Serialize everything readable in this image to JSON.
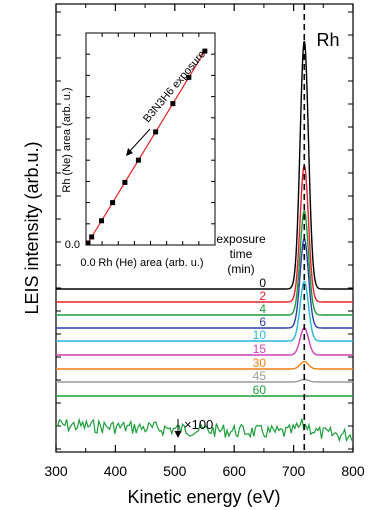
{
  "chart_data": [
    {
      "type": "line",
      "xlabel": "Kinetic energy (eV)",
      "ylabel": "LEIS intensity (arb.u.)",
      "xlim": [
        300,
        800
      ],
      "x_ticks": [
        "300",
        "400",
        "500",
        "600",
        "700",
        "800"
      ],
      "peak_label": "Rh",
      "peak_position_ev": 718,
      "legend_title": [
        "exposure",
        "time",
        "(min)"
      ],
      "magnification_label": "×100",
      "magnified_series": "60",
      "series": [
        {
          "name": "0",
          "color": "#000000",
          "peak_height": 1.0
        },
        {
          "name": "2",
          "color": "#e8202a",
          "peak_height": 0.55
        },
        {
          "name": "4",
          "color": "#1b9e3a",
          "peak_height": 0.42
        },
        {
          "name": "6",
          "color": "#2b3ea8",
          "peak_height": 0.36
        },
        {
          "name": "10",
          "color": "#22b8d8",
          "peak_height": 0.24
        },
        {
          "name": "15",
          "color": "#cc3fb4",
          "peak_height": 0.11
        },
        {
          "name": "30",
          "color": "#f07f12",
          "peak_height": 0.03
        },
        {
          "name": "45",
          "color": "#9a9a9a",
          "peak_height": 0.01
        },
        {
          "name": "60",
          "color": "#1b9e3a",
          "peak_height": 0.0
        }
      ]
    },
    {
      "type": "scatter",
      "xlabel": "Rh (He) area (arb. u.)",
      "ylabel": "Rh (Ne) area (arb. u.)",
      "x_ticks": [
        "0.0"
      ],
      "y_ticks": [
        "0.0"
      ],
      "annotation": "B3N3H6 exposure",
      "x": [
        0.0,
        0.03,
        0.11,
        0.2,
        0.3,
        0.41,
        0.55,
        0.69,
        0.82,
        0.95
      ],
      "y": [
        0.0,
        0.03,
        0.11,
        0.2,
        0.3,
        0.41,
        0.55,
        0.69,
        0.82,
        0.95
      ],
      "point_color": "#000000",
      "fit_line_color": "#e8202a"
    }
  ]
}
